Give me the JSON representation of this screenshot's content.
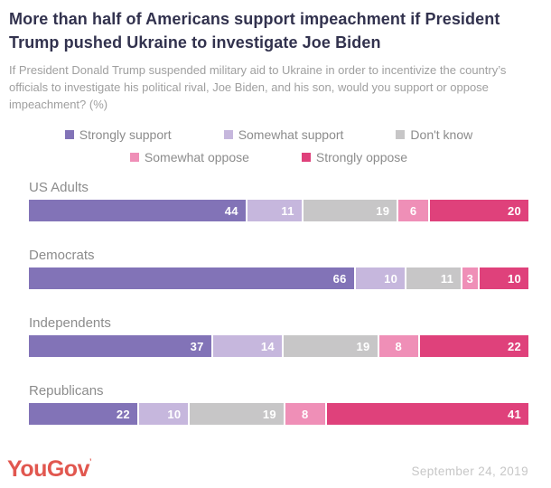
{
  "header": {
    "title": "More than half of Americans support impeachment if President Trump pushed Ukraine to investigate Joe Biden",
    "subtitle": "If President Donald Trump suspended military aid to Ukraine in order to incentivize the country’s officials to investigate his political rival, Joe Biden, and his son, would you support or oppose impeachment? (%)"
  },
  "colors": {
    "title_text": "#32324e",
    "subtitle_text": "#9f9f9f",
    "category_text": "#8c8c8c",
    "legend_text": "#8c8c8c",
    "value_text": "#ffffff",
    "brand": "#e1574f",
    "date_text": "#c7c7c7"
  },
  "chart_data": {
    "type": "bar",
    "orientation": "horizontal-stacked",
    "title": "More than half of Americans support impeachment if President Trump pushed Ukraine to investigate Joe Biden",
    "xlim": [
      0,
      100
    ],
    "value_labels": "inside-end",
    "legend_position": "top-center",
    "legend_rows": [
      [
        0,
        1,
        2
      ],
      [
        3,
        4
      ]
    ],
    "categories": [
      "US Adults",
      "Democrats",
      "Independents",
      "Republicans"
    ],
    "series": [
      {
        "name": "Strongly support",
        "color": "#8273b7",
        "values": [
          44,
          66,
          37,
          22
        ]
      },
      {
        "name": "Somewhat support",
        "color": "#c6b7dd",
        "values": [
          11,
          10,
          14,
          10
        ]
      },
      {
        "name": "Don't know",
        "color": "#c7c6c7",
        "values": [
          19,
          11,
          19,
          19
        ]
      },
      {
        "name": "Somewhat oppose",
        "color": "#ef8fb7",
        "values": [
          6,
          3,
          8,
          8
        ]
      },
      {
        "name": "Strongly oppose",
        "color": "#df417b",
        "values": [
          20,
          10,
          22,
          41
        ]
      }
    ]
  },
  "footer": {
    "brand": "YouGov",
    "trademark_mark": "’",
    "date": "September 24, 2019"
  }
}
